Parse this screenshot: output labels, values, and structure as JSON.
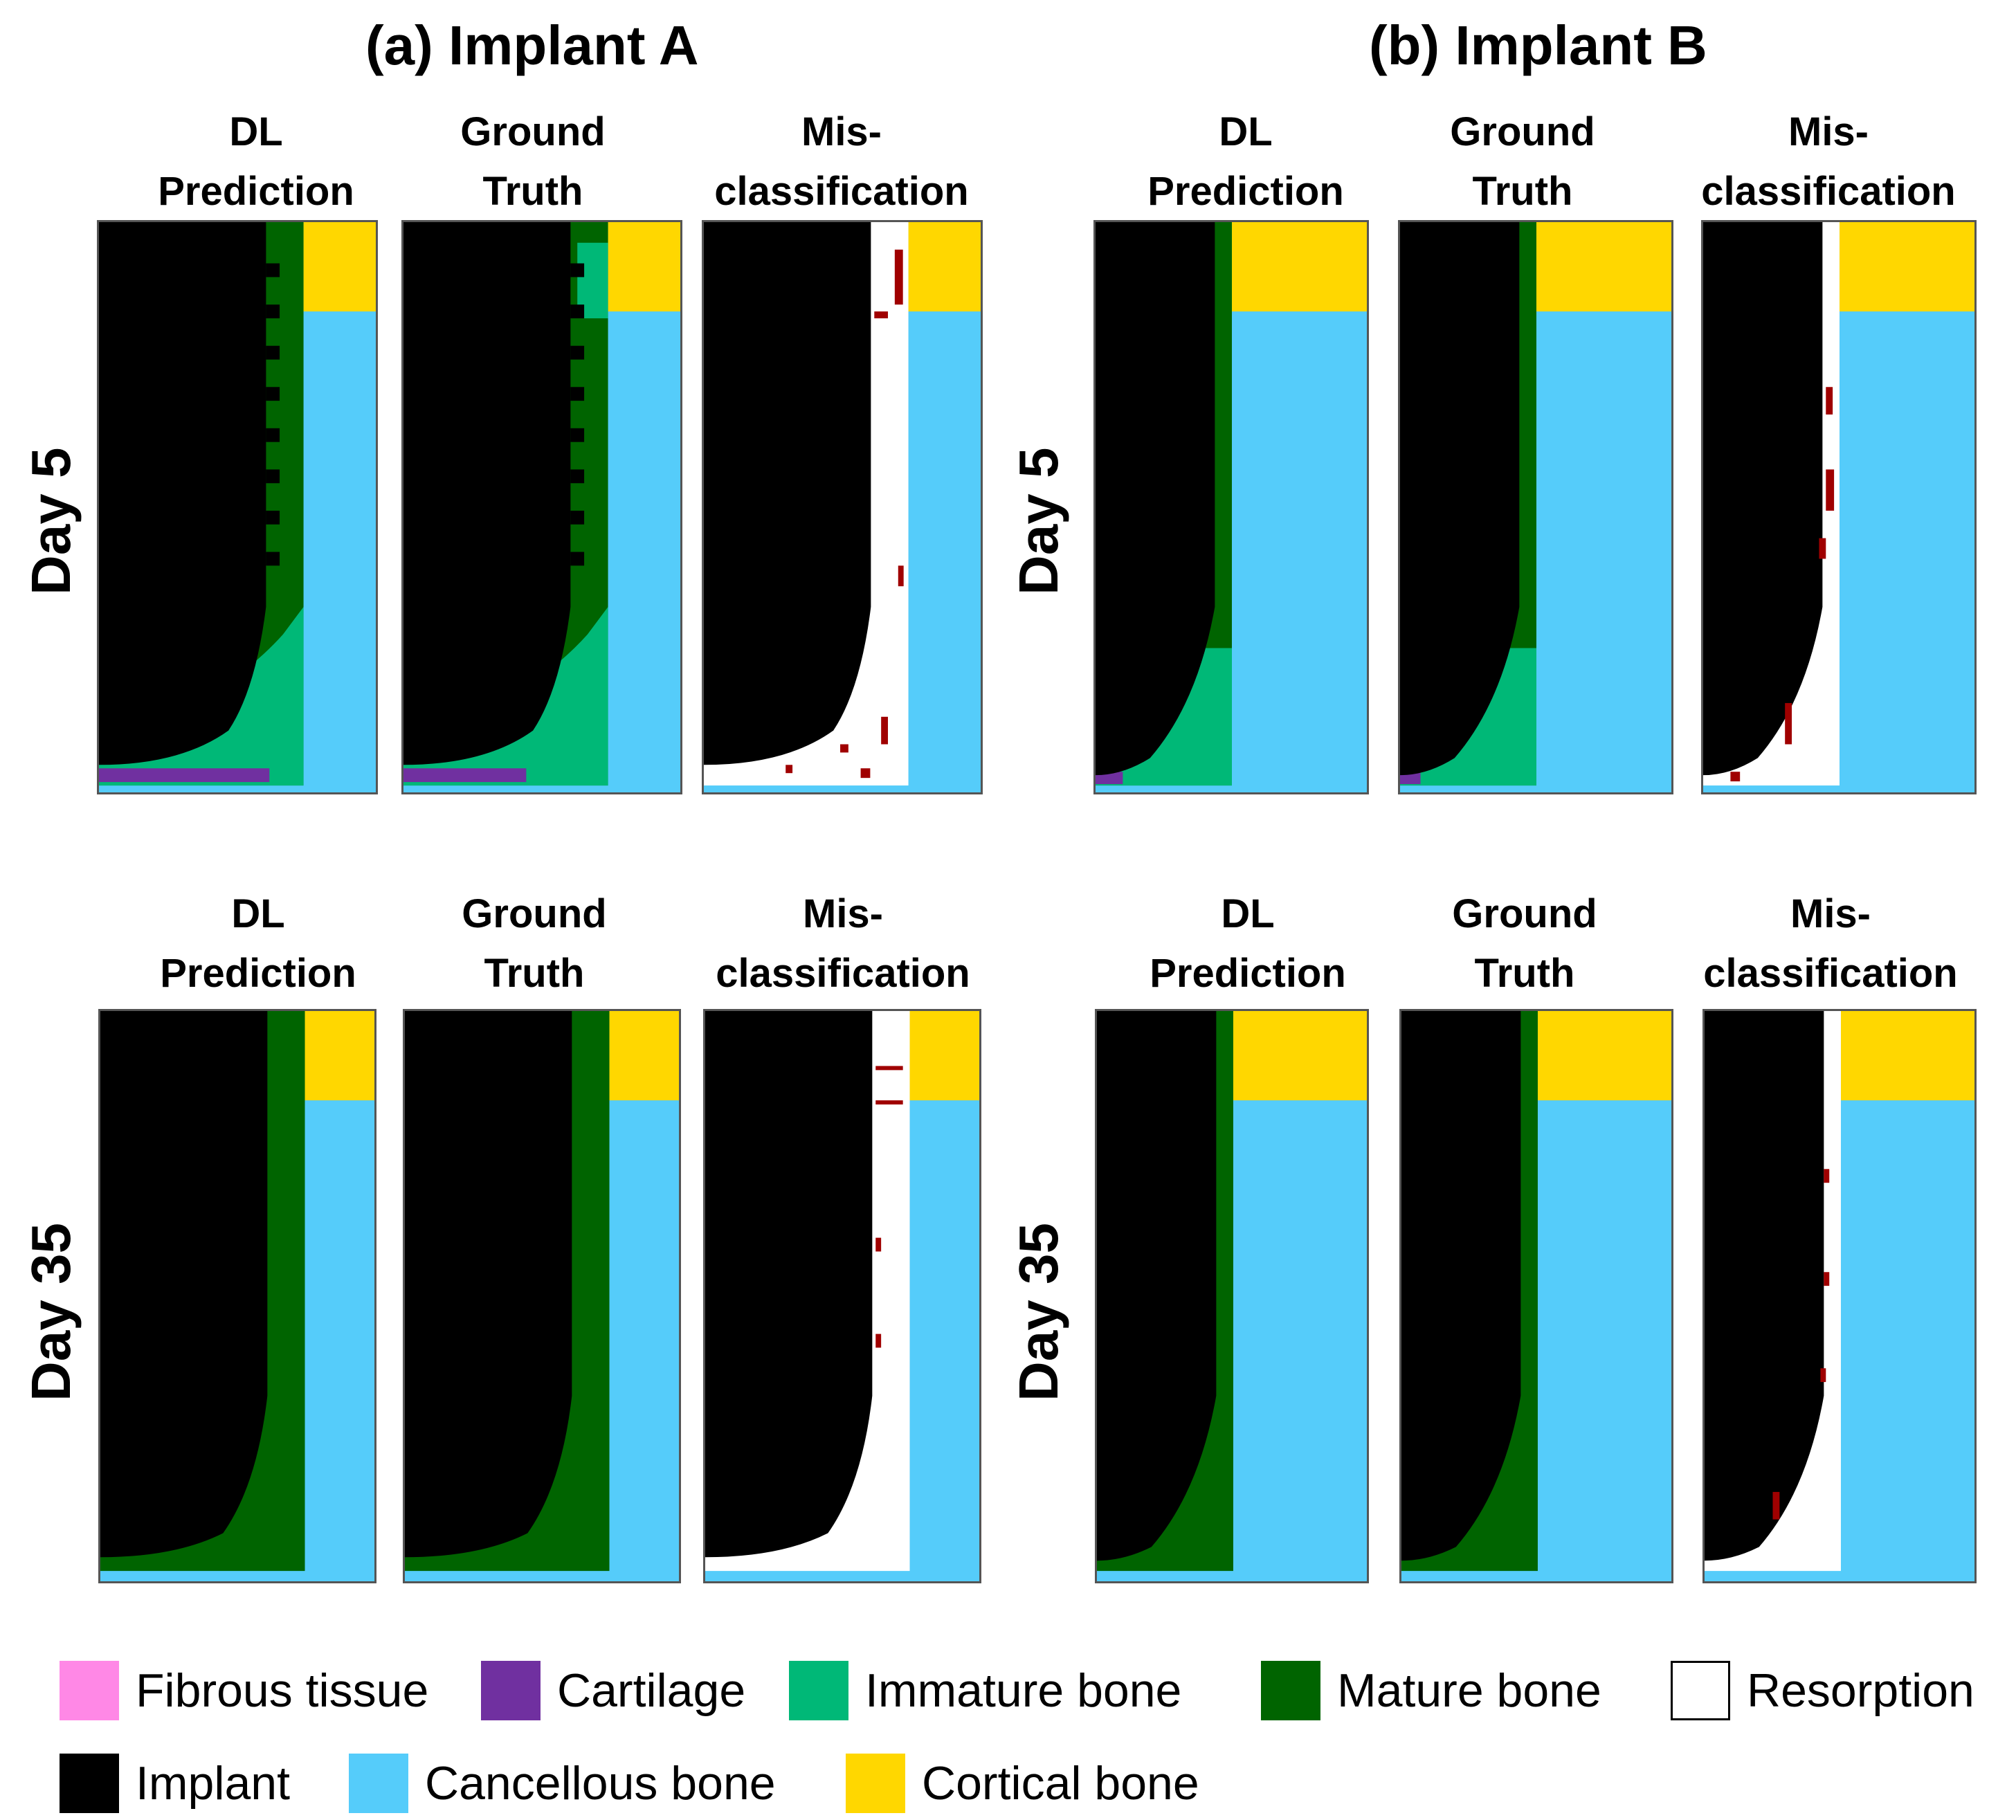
{
  "titles": {
    "implant_a": "(a) Implant A",
    "implant_b": "(b) Implant B"
  },
  "column_titles": {
    "prediction": "DL\nPrediction",
    "ground_truth": "Ground\nTruth",
    "misclassification": "Mis-\nclassification"
  },
  "row_labels": {
    "day5": "Day 5",
    "day35": "Day 35"
  },
  "legend": [
    {
      "label": "Fibrous tissue",
      "color": "#FF88E6"
    },
    {
      "label": "Cartilage",
      "color": "#7030A0"
    },
    {
      "label": "Immature bone",
      "color": "#00B877"
    },
    {
      "label": "Mature bone",
      "color": "#006400"
    },
    {
      "label": "Resorption",
      "color": "#FFFFFF"
    },
    {
      "label": "Implant",
      "color": "#000000"
    },
    {
      "label": "Cancellous bone",
      "color": "#55CCFA"
    },
    {
      "label": "Cortical bone",
      "color": "#FFD700"
    }
  ],
  "colors": {
    "implant": "#000000",
    "mature_bone": "#006400",
    "immature_bone": "#00B877",
    "cartilage": "#7030A0",
    "cancellous_bone": "#55CCFA",
    "cortical_bone": "#FFD700",
    "resorption": "#FFFFFF",
    "misclassified": "#A00000"
  }
}
